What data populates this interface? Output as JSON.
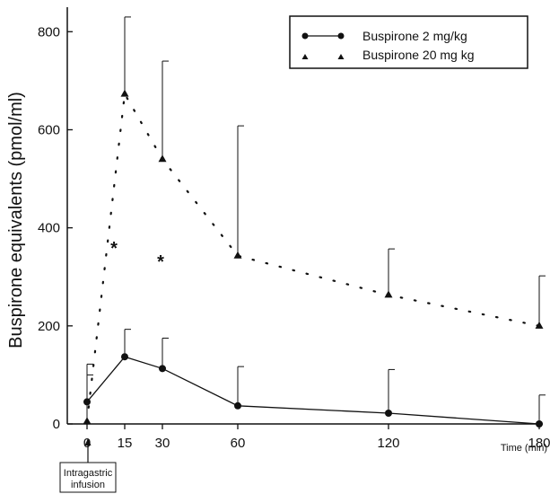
{
  "chart_data": {
    "type": "line",
    "title": "",
    "xlabel": "Time (min)",
    "ylabel": "Buspirone equivalents (pmol/ml)",
    "xlim": [
      0,
      180
    ],
    "ylim": [
      0,
      850
    ],
    "x_ticks": [
      0,
      15,
      30,
      60,
      120,
      180
    ],
    "y_ticks": [
      0,
      200,
      400,
      600,
      800
    ],
    "grid": false,
    "legend_position": "top-right",
    "annotation": "Intragastric infusion",
    "significance_marker": "*",
    "significance_x": [
      15,
      30
    ],
    "series": [
      {
        "name": "Buspirone 2 mg/kg",
        "marker": "circle",
        "line": "solid",
        "x": [
          0,
          15,
          30,
          60,
          120,
          180
        ],
        "y": [
          45,
          137,
          113,
          37,
          22,
          0
        ],
        "error_upper": [
          122,
          193,
          175,
          117,
          111,
          59
        ]
      },
      {
        "name": "Buspirone 20 mg kg",
        "marker": "triangle",
        "line": "dotted",
        "x": [
          0,
          15,
          30,
          60,
          120,
          180
        ],
        "y": [
          5,
          673,
          540,
          343,
          263,
          200
        ],
        "error_upper": [
          100,
          830,
          740,
          608,
          357,
          302
        ]
      }
    ]
  }
}
